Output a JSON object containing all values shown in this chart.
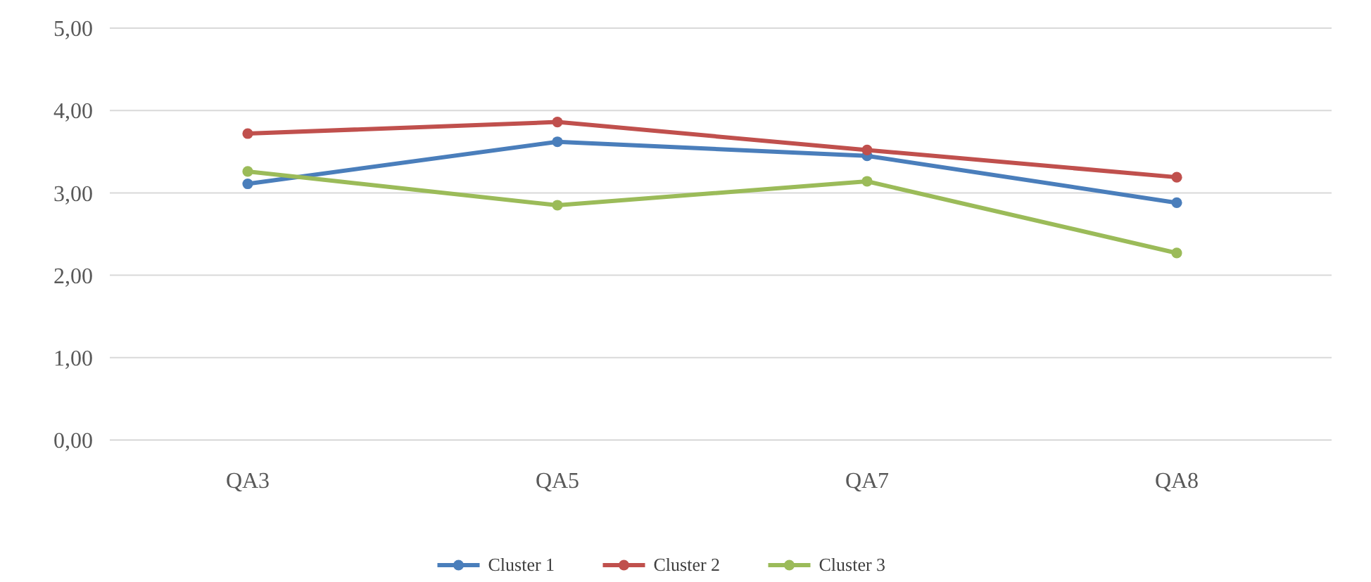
{
  "chart_data": {
    "type": "line",
    "categories": [
      "QA3",
      "QA5",
      "QA7",
      "QA8"
    ],
    "series": [
      {
        "name": "Cluster 1",
        "color": "#4a7ebb",
        "values": [
          3.11,
          3.62,
          3.45,
          2.88
        ]
      },
      {
        "name": "Cluster 2",
        "color": "#c0504d",
        "values": [
          3.72,
          3.86,
          3.52,
          3.19
        ]
      },
      {
        "name": "Cluster 3",
        "color": "#9bbb59",
        "values": [
          3.26,
          2.85,
          3.14,
          2.27
        ]
      }
    ],
    "ylim": [
      0,
      5
    ],
    "yticks": [
      {
        "value": 0,
        "label": "0,00"
      },
      {
        "value": 1,
        "label": "1,00"
      },
      {
        "value": 2,
        "label": "2,00"
      },
      {
        "value": 3,
        "label": "3,00"
      },
      {
        "value": 4,
        "label": "4,00"
      },
      {
        "value": 5,
        "label": "5,00"
      }
    ],
    "grid": "y",
    "legend": "bottom",
    "marker": "circle",
    "line_style": "solid"
  }
}
